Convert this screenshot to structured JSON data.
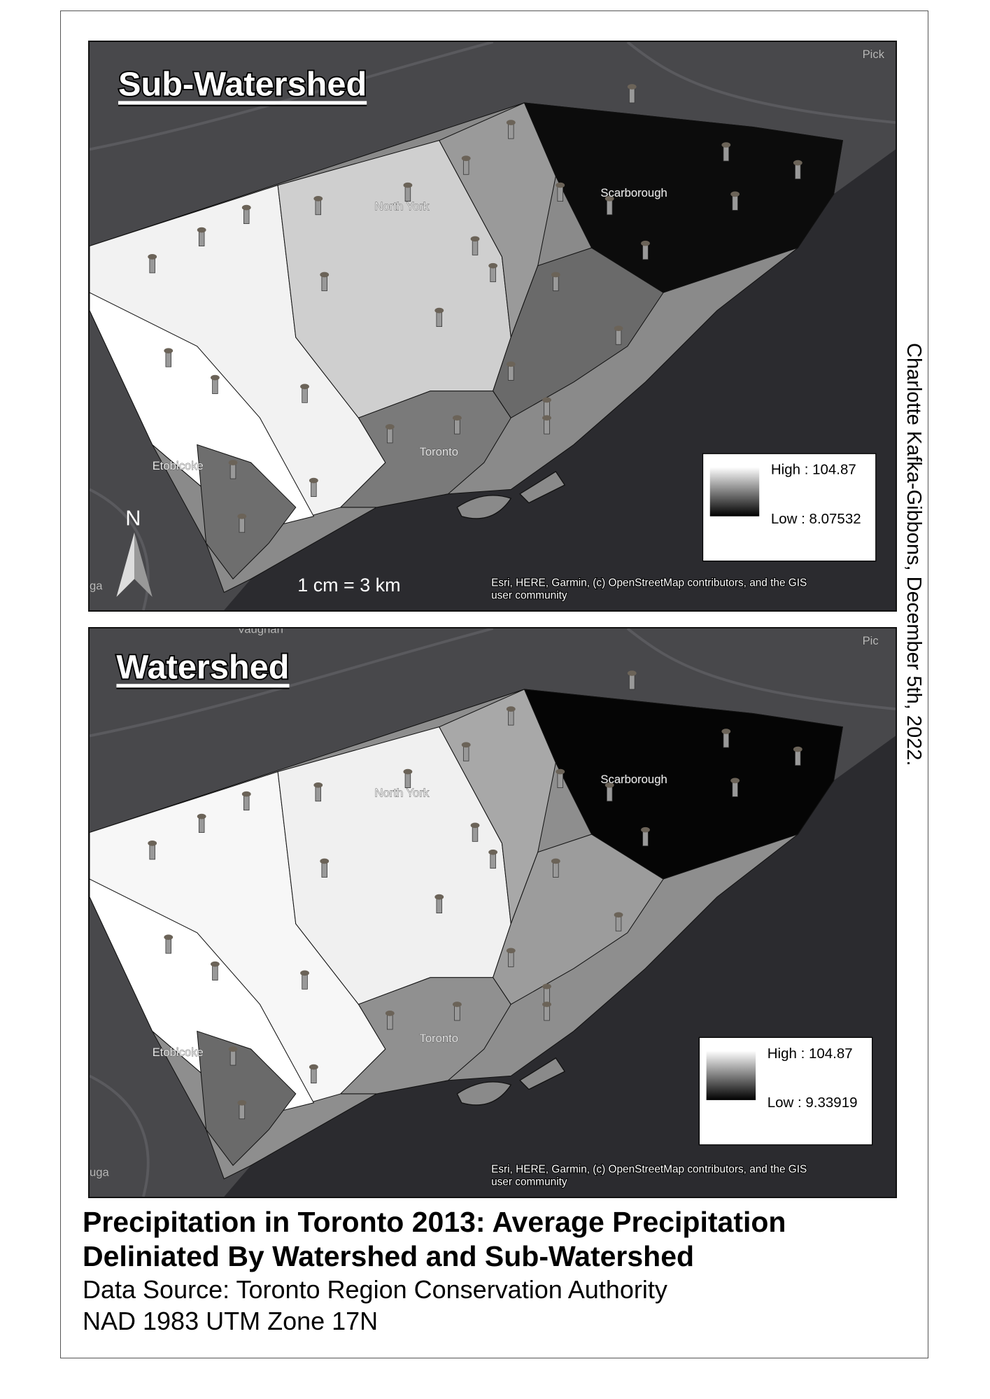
{
  "maps": [
    {
      "title": "Sub-Watershed",
      "legend": {
        "high": "High : 104.87",
        "low": "Low : 8.07532"
      },
      "north": "N",
      "scale_text": "1 cm = 3 km",
      "attribution": [
        "Esri, HERE, Garmin, (c) OpenStreetMap contributors, and the GIS",
        "user community"
      ],
      "places": [
        "Scarborough",
        "North York",
        "Toronto",
        "Etobicoke",
        "Pick",
        "ga"
      ]
    },
    {
      "title": "Watershed",
      "legend": {
        "high": "High : 104.87",
        "low": "Low : 9.33919"
      },
      "attribution": [
        "Esri, HERE, Garmin, (c) OpenStreetMap contributors, and the GIS",
        "user community"
      ],
      "places": [
        "Scarborough",
        "North York",
        "Toronto",
        "Etobicoke",
        "Pic",
        "uga",
        "Vaughan"
      ]
    }
  ],
  "author": "Charlotte Kafka-Gibbons, December 5th, 2022.",
  "footer": {
    "title": [
      "Precipitation in Toronto 2013: Average Precipitation",
      "Deliniated By Watershed and Sub-Watershed"
    ],
    "source": "Data Source: Toronto Region Conservation Authority",
    "projection": "NAD 1983 UTM Zone 17N"
  }
}
